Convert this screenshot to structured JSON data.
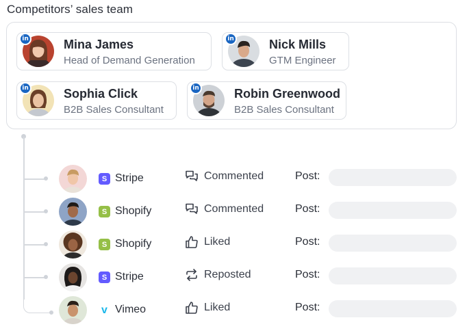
{
  "section_title": "Competitors’ sales team",
  "linkedin_badge": "in",
  "team": [
    {
      "name": "Mina James",
      "role": "Head of Demand Generation"
    },
    {
      "name": "Nick Mills",
      "role": "GTM Engineer"
    },
    {
      "name": "Sophia Click",
      "role": "B2B Sales Consultant"
    },
    {
      "name": "Robin Greenwood",
      "role": "B2B Sales Consultant"
    }
  ],
  "activity": [
    {
      "company": "Stripe",
      "company_icon": "stripe-icon",
      "company_color": "#635bff",
      "action": "Commented",
      "action_icon": "comment-icon",
      "post_label": "Post:"
    },
    {
      "company": "Shopify",
      "company_icon": "shopify-icon",
      "company_color": "#95bf47",
      "action": "Commented",
      "action_icon": "comment-icon",
      "post_label": "Post:"
    },
    {
      "company": "Shopify",
      "company_icon": "shopify-icon",
      "company_color": "#95bf47",
      "action": "Liked",
      "action_icon": "thumbs-up-icon",
      "post_label": "Post:"
    },
    {
      "company": "Stripe",
      "company_icon": "stripe-icon",
      "company_color": "#635bff",
      "action": "Reposted",
      "action_icon": "repost-icon",
      "post_label": "Post:"
    },
    {
      "company": "Vimeo",
      "company_icon": "vimeo-icon",
      "company_color": "#1ab7ea",
      "action": "Liked",
      "action_icon": "thumbs-up-icon",
      "post_label": "Post:"
    }
  ],
  "colors": {
    "linkedin": "#1a66c2",
    "border": "#dcdfe4",
    "post_field": "#f0f1f3"
  }
}
